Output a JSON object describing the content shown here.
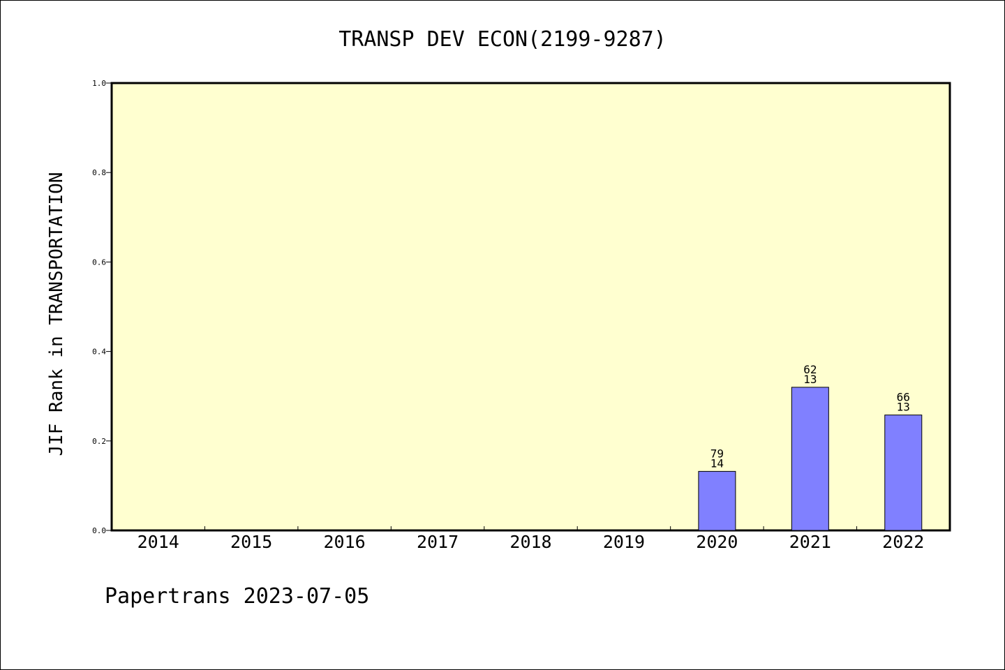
{
  "chart_data": {
    "type": "bar",
    "title": "TRANSP DEV ECON(2199-9287)",
    "ylabel": "JIF Rank in TRANSPORTATION",
    "xlabel": "",
    "ylim": [
      0,
      1.0
    ],
    "yticks": [
      "0.0",
      "0.2",
      "0.4",
      "0.6",
      "0.8",
      "1.0"
    ],
    "grid": false,
    "categories": [
      "2014",
      "2015",
      "2016",
      "2017",
      "2018",
      "2019",
      "2020",
      "2021",
      "2022"
    ],
    "values": [
      null,
      null,
      null,
      null,
      null,
      null,
      0.132,
      0.32,
      0.258
    ],
    "rank_labels": [
      {
        "top": "",
        "bottom": ""
      },
      {
        "top": "",
        "bottom": ""
      },
      {
        "top": "",
        "bottom": ""
      },
      {
        "top": "",
        "bottom": ""
      },
      {
        "top": "",
        "bottom": ""
      },
      {
        "top": "",
        "bottom": ""
      },
      {
        "top": "79",
        "bottom": "14"
      },
      {
        "top": "62",
        "bottom": "13"
      },
      {
        "top": "66",
        "bottom": "13"
      }
    ],
    "colors": {
      "plot_background": "#ffffd0",
      "bar_fill": "#8080ff",
      "bar_stroke": "#000000"
    }
  },
  "footer": "Papertrans 2023-07-05"
}
